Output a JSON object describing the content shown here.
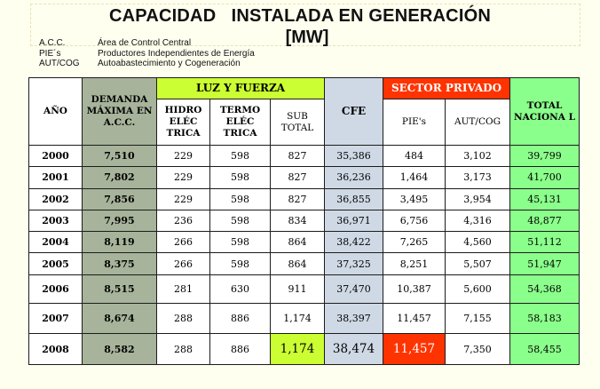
{
  "title_line1": "CAPACIDAD   INSTALADA EN GENERACIÓN",
  "title_line2": "[MW]",
  "legend": [
    {
      "abbr": "A.C.C.",
      "desc": "Área de Control Central"
    },
    {
      "abbr": "PIE´s",
      "desc": "Productores Independientes de Energía"
    },
    {
      "abbr": "AUT/COG",
      "desc": "Autoabastecimiento y Cogeneración"
    }
  ],
  "headers": {
    "year": "AÑO",
    "demanda": "DEMANDA MÁXIMA EN A.C.C.",
    "luz_y_fuerza": "LUZ Y FUERZA",
    "hidro": "HIDRO ELÉC TRICA",
    "termo": "TERMO ELÉC TRICA",
    "sub": "SUB TOTAL",
    "cfe": "CFE",
    "sector_privado": "SECTOR PRIVADO",
    "pies": "PIE's",
    "autcog": "AUT/COG",
    "total": "TOTAL NACIONA L"
  },
  "colors": {
    "demanda": "#a7b39a",
    "luz_y_fuerza": "#ccff33",
    "cfe": "#cfd9e5",
    "sector_privado": "#ff3300",
    "total": "#8bff8b"
  },
  "rows": [
    {
      "year": "2000",
      "demanda": "7,510",
      "hidro": "229",
      "termo": "598",
      "sub": "827",
      "cfe": "35,386",
      "pies": "484",
      "autcog": "3,102",
      "total": "39,799"
    },
    {
      "year": "2001",
      "demanda": "7,802",
      "hidro": "229",
      "termo": "598",
      "sub": "827",
      "cfe": "36,236",
      "pies": "1,464",
      "autcog": "3,173",
      "total": "41,700"
    },
    {
      "year": "2002",
      "demanda": "7,856",
      "hidro": "229",
      "termo": "598",
      "sub": "827",
      "cfe": "36,855",
      "pies": "3,495",
      "autcog": "3,954",
      "total": "45,131"
    },
    {
      "year": "2003",
      "demanda": "7,995",
      "hidro": "236",
      "termo": "598",
      "sub": "834",
      "cfe": "36,971",
      "pies": "6,756",
      "autcog": "4,316",
      "total": "48,877"
    },
    {
      "year": "2004",
      "demanda": "8,119",
      "hidro": "266",
      "termo": "598",
      "sub": "864",
      "cfe": "38,422",
      "pies": "7,265",
      "autcog": "4,560",
      "total": "51,112"
    },
    {
      "year": "2005",
      "demanda": "8,375",
      "hidro": "266",
      "termo": "598",
      "sub": "864",
      "cfe": "37,325",
      "pies": "8,251",
      "autcog": "5,507",
      "total": "51,947"
    },
    {
      "year": "2006",
      "demanda": "8,515",
      "hidro": "281",
      "termo": "630",
      "sub": "911",
      "cfe": "37,470",
      "pies": "10,387",
      "autcog": "5,600",
      "total": "54,368"
    },
    {
      "year": "2007",
      "demanda": "8,674",
      "hidro": "288",
      "termo": "886",
      "sub": "1,174",
      "cfe": "38,397",
      "pies": "11,457",
      "autcog": "7,155",
      "total": "58,183"
    },
    {
      "year": "2008",
      "demanda": "8,582",
      "hidro": "288",
      "termo": "886",
      "sub": "1,174",
      "cfe": "38,474",
      "pies": "11,457",
      "autcog": "7,350",
      "total": "58,455"
    }
  ]
}
